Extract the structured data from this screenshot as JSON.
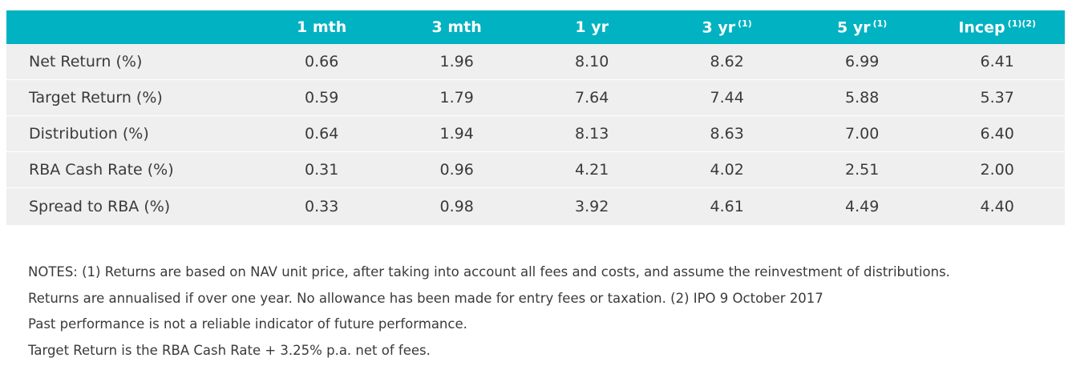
{
  "table": {
    "header": {
      "blank": "",
      "columns": [
        {
          "label": "1 mth",
          "note": ""
        },
        {
          "label": "3 mth",
          "note": ""
        },
        {
          "label": "1 yr",
          "note": ""
        },
        {
          "label": "3 yr",
          "note": "(1)"
        },
        {
          "label": "5 yr",
          "note": "(1)"
        },
        {
          "label": "Incep",
          "note": "(1)(2)"
        }
      ]
    },
    "rows": [
      {
        "label": "Net Return (%)",
        "values": [
          "0.66",
          "1.96",
          "8.10",
          "8.62",
          "6.99",
          "6.41"
        ]
      },
      {
        "label": "Target Return (%)",
        "values": [
          "0.59",
          "1.79",
          "7.64",
          "7.44",
          "5.88",
          "5.37"
        ]
      },
      {
        "label": "Distribution (%)",
        "values": [
          "0.64",
          "1.94",
          "8.13",
          "8.63",
          "7.00",
          "6.40"
        ]
      },
      {
        "label": "RBA Cash Rate (%)",
        "values": [
          "0.31",
          "0.96",
          "4.21",
          "4.02",
          "2.51",
          "2.00"
        ]
      },
      {
        "label": "Spread to RBA (%)",
        "values": [
          "0.33",
          "0.98",
          "3.92",
          "4.61",
          "4.49",
          "4.40"
        ]
      }
    ]
  },
  "notes": [
    "NOTES: (1) Returns are based on NAV unit price, after taking into account all fees and costs, and assume the reinvestment of distributions.",
    "Returns are annualised if over one year. No allowance has been made for entry fees or taxation. (2) IPO 9 October 2017",
    "Past performance is not a reliable indicator of future performance.",
    "Target Return is the RBA Cash Rate + 3.25% p.a. net of fees."
  ],
  "colors": {
    "header_bg": "#00b2c2",
    "header_text": "#ffffff",
    "row_bg": "#efefef",
    "body_text": "#3a3a3a"
  }
}
